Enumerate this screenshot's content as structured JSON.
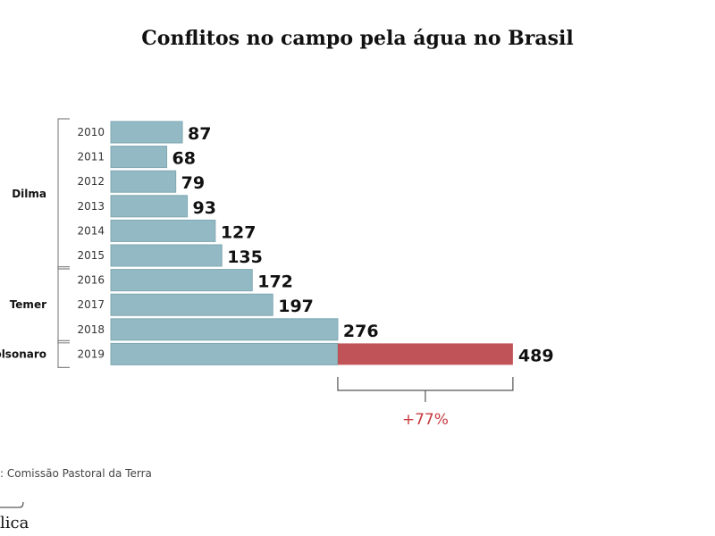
{
  "title": "Conflitos no campo pela água no Brasil",
  "source": ": Comissão Pastoral da Terra",
  "logo_text": "lica",
  "chart_data": {
    "type": "bar",
    "orientation": "horizontal",
    "title": "Conflitos no campo pela água no Brasil",
    "categories": [
      "2010",
      "2011",
      "2012",
      "2013",
      "2014",
      "2015",
      "2016",
      "2017",
      "2018",
      "2019"
    ],
    "values": [
      87,
      68,
      79,
      93,
      127,
      135,
      172,
      197,
      276,
      489
    ],
    "data_labels": [
      "87",
      "68",
      "79",
      "93",
      "127",
      "135",
      "172",
      "197",
      "276",
      "489"
    ],
    "groups": [
      {
        "label": "Dilma",
        "from": "2010",
        "to": "2015"
      },
      {
        "label": "Temer",
        "from": "2016",
        "to": "2018"
      },
      {
        "label": "Bolsonaro",
        "from": "2019",
        "to": "2019"
      }
    ],
    "annotation": {
      "text": "+77%",
      "from_value": 276,
      "to_value": 489
    },
    "colors": {
      "bar": "#93bac4",
      "increase": "#c05357",
      "annotation": "#c9393f"
    }
  }
}
